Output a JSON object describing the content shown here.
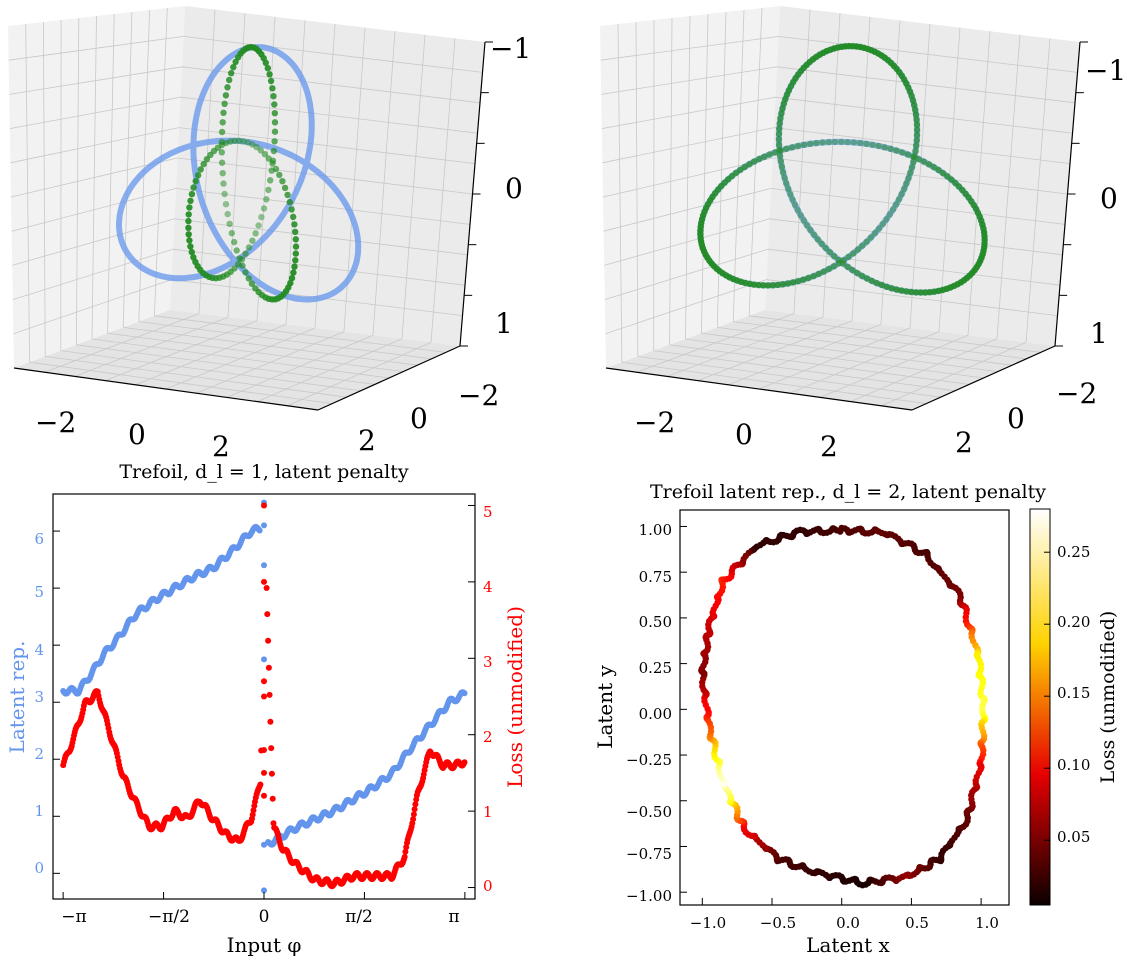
{
  "colors": {
    "blue": "#6495ED",
    "green": "#228B22",
    "red": "#FF0000"
  },
  "chart_data": [
    {
      "type": "scatter",
      "subtype": "3d",
      "title": "",
      "z_ticks": [
        "−1",
        "0",
        "1"
      ],
      "x_ticks": [
        "−2",
        "0",
        "2"
      ],
      "y_ticks": [
        "−2",
        "0",
        "2"
      ],
      "series": [
        {
          "style": "trefoil knot curve",
          "color": "#6495ED"
        },
        {
          "style": "reconstruction points",
          "color": "#228B22"
        }
      ]
    },
    {
      "type": "scatter",
      "subtype": "3d",
      "title": "",
      "z_ticks": [
        "−1",
        "0",
        "1"
      ],
      "x_ticks": [
        "−2",
        "0",
        "2"
      ],
      "y_ticks": [
        "−2",
        "0",
        "2"
      ],
      "series": [
        {
          "style": "trefoil knot curve",
          "color": "#6495ED"
        },
        {
          "style": "reconstruction points",
          "color": "#228B22"
        }
      ]
    },
    {
      "type": "scatter",
      "title": "Trefoil, d_l = 1, latent penalty",
      "xlabel": "Input φ",
      "ylabel": "Latent rep.",
      "ylabel_right": "Loss (unmodified)",
      "xlim": [
        -3.3,
        3.3
      ],
      "ylim": [
        -0.45,
        6.65
      ],
      "ylim_right": [
        -0.15,
        5.15
      ],
      "x_ticks": [
        "−π",
        "−π/2",
        "0",
        "π/2",
        "π"
      ],
      "y_ticks": [
        "0",
        "1",
        "2",
        "3",
        "4",
        "5",
        "6"
      ],
      "y_ticks_right": [
        "0",
        "1",
        "2",
        "3",
        "4",
        "5"
      ],
      "series": [
        {
          "name": "Latent rep.",
          "color": "#6495ED",
          "axis": "left",
          "x": [
            -3.14,
            -2.9,
            -2.7,
            -2.5,
            -2.3,
            -2.0,
            -1.7,
            -1.4,
            -1.1,
            -0.8,
            -0.5,
            -0.2,
            -0.05,
            0.0,
            0.05,
            0.2,
            0.5,
            0.8,
            1.1,
            1.4,
            1.7,
            2.0,
            2.3,
            2.6,
            2.9,
            3.14
          ],
          "y": [
            3.2,
            3.2,
            3.5,
            3.85,
            4.1,
            4.55,
            4.8,
            5.0,
            5.2,
            5.35,
            5.65,
            6.0,
            6.05,
            -0.3,
            0.5,
            0.6,
            0.8,
            0.95,
            1.1,
            1.3,
            1.5,
            1.75,
            2.2,
            2.6,
            3.0,
            3.15
          ]
        },
        {
          "name": "Loss (unmodified)",
          "color": "#FF0000",
          "axis": "right",
          "x": [
            -3.14,
            -3.0,
            -2.8,
            -2.6,
            -2.4,
            -2.2,
            -2.0,
            -1.8,
            -1.6,
            -1.4,
            -1.2,
            -1.0,
            -0.8,
            -0.6,
            -0.4,
            -0.2,
            -0.05,
            0.0,
            0.15,
            0.3,
            0.5,
            0.8,
            1.1,
            1.4,
            1.7,
            2.0,
            2.2,
            2.4,
            2.6,
            2.8,
            3.0,
            3.14
          ],
          "y": [
            1.6,
            1.9,
            2.4,
            2.55,
            2.0,
            1.45,
            1.1,
            0.8,
            0.8,
            1.0,
            0.9,
            1.15,
            0.9,
            0.7,
            0.6,
            0.9,
            1.4,
            5.0,
            0.8,
            0.5,
            0.3,
            0.1,
            0.05,
            0.15,
            0.15,
            0.15,
            0.4,
            1.2,
            1.8,
            1.6,
            1.6,
            1.65
          ]
        }
      ]
    },
    {
      "type": "scatter",
      "title": "Trefoil latent rep., d_l = 2, latent penalty",
      "xlabel": "Latent x",
      "ylabel": "Latent y",
      "xlim": [
        -1.16,
        1.2
      ],
      "ylim": [
        -1.07,
        1.09
      ],
      "x_ticks": [
        "−1.0",
        "−0.5",
        "0.0",
        "0.5",
        "1.0"
      ],
      "y_ticks": [
        "−1.00",
        "−0.75",
        "−0.50",
        "−0.25",
        "0.00",
        "0.25",
        "0.50",
        "0.75",
        "1.00"
      ],
      "colorbar": {
        "label": "Loss (unmodified)",
        "min": 0.005,
        "max": 0.28,
        "ticks": [
          "0.05",
          "0.10",
          "0.15",
          "0.20",
          "0.25"
        ],
        "colormap": "hot"
      },
      "points": {
        "x": [
          0.0,
          0.3,
          0.6,
          0.85,
          0.98,
          1.02,
          1.0,
          0.9,
          0.7,
          0.45,
          0.15,
          -0.15,
          -0.45,
          -0.7,
          -0.85,
          -0.95,
          -1.0,
          -0.95,
          -0.85,
          -0.6,
          -0.3,
          0.0
        ],
        "y": [
          0.98,
          0.97,
          0.85,
          0.62,
          0.3,
          0.0,
          -0.3,
          -0.6,
          -0.82,
          -0.92,
          -0.95,
          -0.9,
          -0.82,
          -0.65,
          -0.4,
          -0.1,
          0.2,
          0.45,
          0.7,
          0.9,
          0.97,
          0.98
        ],
        "loss": [
          0.03,
          0.04,
          0.03,
          0.05,
          0.2,
          0.23,
          0.1,
          0.04,
          0.02,
          0.06,
          0.01,
          0.02,
          0.03,
          0.1,
          0.28,
          0.14,
          0.05,
          0.08,
          0.12,
          0.02,
          0.02,
          0.03
        ]
      }
    }
  ]
}
